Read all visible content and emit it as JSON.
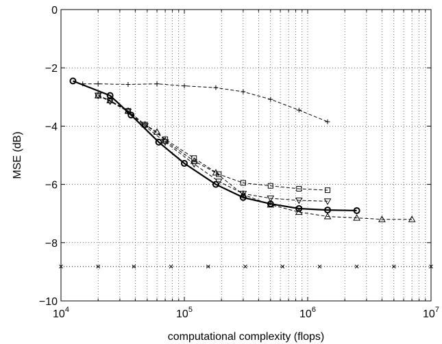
{
  "chart_data": {
    "type": "line",
    "title": "",
    "xlabel": "computational complexity (flops)",
    "ylabel": "MSE (dB)",
    "xscale": "log",
    "xlim": [
      10000,
      10000000
    ],
    "ylim": [
      -10,
      0
    ],
    "grid": "dotted",
    "xticks": [
      {
        "base": "10",
        "exp": "4",
        "value": 10000
      },
      {
        "base": "10",
        "exp": "5",
        "value": 100000
      },
      {
        "base": "10",
        "exp": "6",
        "value": 1000000
      },
      {
        "base": "10",
        "exp": "7",
        "value": 10000000
      }
    ],
    "yticks": [
      "0",
      "−2",
      "−4",
      "−6",
      "−8",
      "−10"
    ],
    "series": [
      {
        "marker": "circle",
        "line": "solid-bold",
        "x": [
          12500,
          25000,
          37000,
          62000,
          100000,
          180000,
          300000,
          500000,
          850000,
          1450000,
          2500000
        ],
        "y": [
          -2.45,
          -2.95,
          -3.62,
          -4.55,
          -5.28,
          -6.0,
          -6.45,
          -6.67,
          -6.83,
          -6.88,
          -6.9
        ]
      },
      {
        "marker": "plus",
        "line": "dashed",
        "x": [
          15000,
          20000,
          35000,
          60000,
          100000,
          180000,
          300000,
          500000,
          850000,
          1450000
        ],
        "y": [
          -2.55,
          -2.55,
          -2.57,
          -2.55,
          -2.62,
          -2.68,
          -2.82,
          -3.08,
          -3.45,
          -3.85
        ]
      },
      {
        "marker": "square",
        "line": "dashed",
        "x": [
          20000,
          25000,
          35000,
          48000,
          70000,
          120000,
          190000,
          300000,
          500000,
          850000,
          1450000
        ],
        "y": [
          -2.95,
          -3.12,
          -3.48,
          -3.95,
          -4.45,
          -5.1,
          -5.65,
          -5.95,
          -6.05,
          -6.15,
          -6.2
        ]
      },
      {
        "marker": "triangle-down",
        "line": "dashed",
        "x": [
          20000,
          25000,
          35000,
          48000,
          70000,
          120000,
          190000,
          300000,
          500000,
          850000,
          1450000
        ],
        "y": [
          -2.95,
          -3.15,
          -3.5,
          -4.0,
          -4.55,
          -5.3,
          -5.9,
          -6.32,
          -6.48,
          -6.55,
          -6.58
        ]
      },
      {
        "marker": "triangle-up",
        "line": "dashed",
        "x": [
          20000,
          25000,
          35000,
          48000,
          60000,
          70000,
          120000,
          180000,
          300000,
          500000,
          850000,
          1450000,
          2500000,
          4000000,
          7000000
        ],
        "y": [
          -2.95,
          -3.12,
          -3.48,
          -3.95,
          -4.2,
          -4.5,
          -5.2,
          -5.6,
          -6.35,
          -6.7,
          -6.95,
          -7.1,
          -7.15,
          -7.2,
          -7.2
        ]
      },
      {
        "marker": "x",
        "line": "dotted",
        "x": [
          10000,
          20000,
          39000,
          78000,
          156000,
          312000,
          625000,
          1250000,
          2500000,
          5000000,
          10000000
        ],
        "y": [
          -8.82,
          -8.82,
          -8.82,
          -8.82,
          -8.82,
          -8.82,
          -8.82,
          -8.82,
          -8.82,
          -8.82,
          -8.82
        ]
      }
    ]
  }
}
